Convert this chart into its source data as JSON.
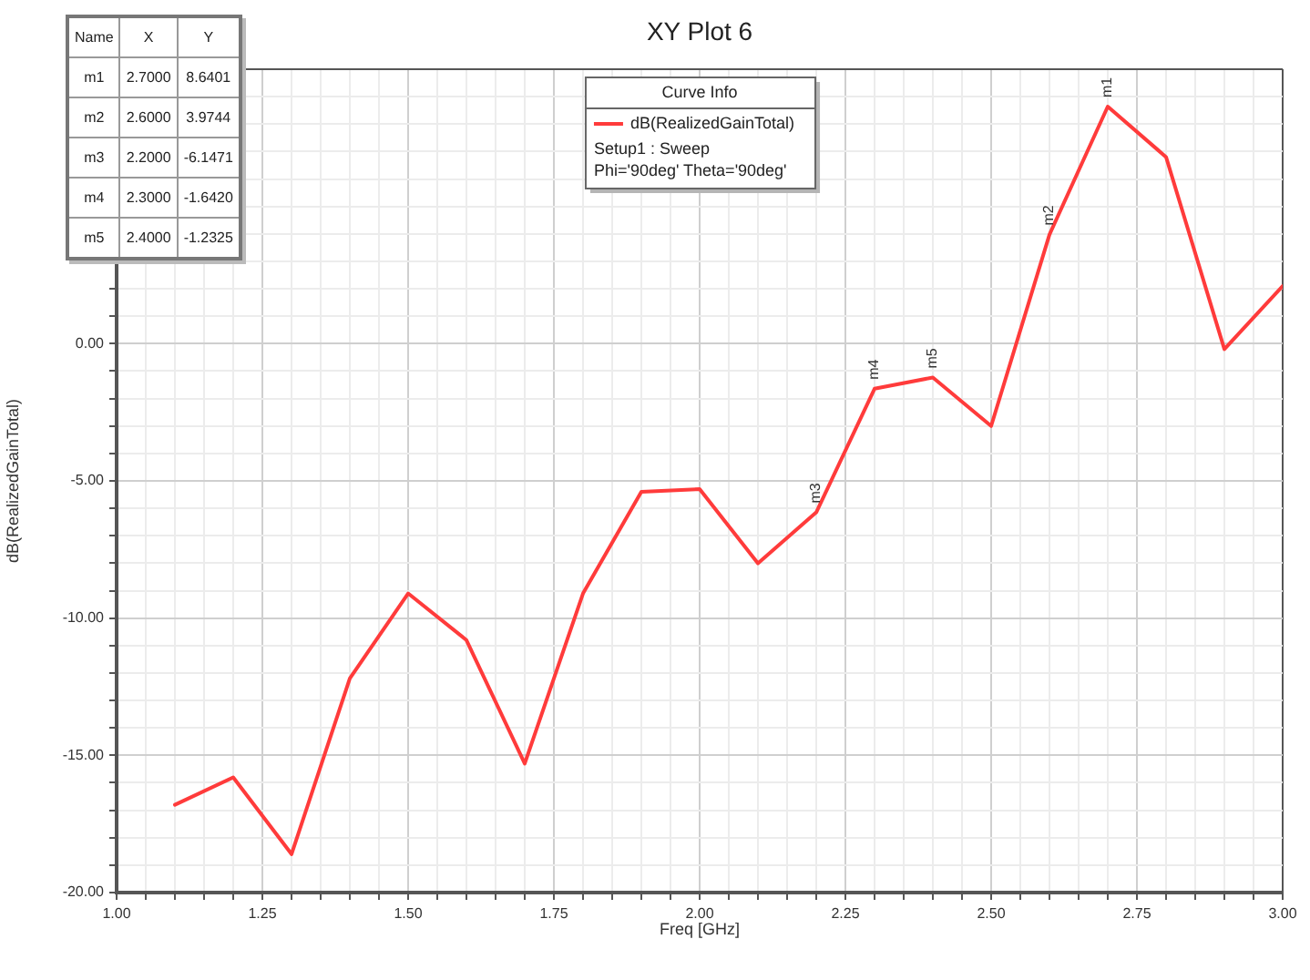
{
  "chart_data": {
    "type": "line",
    "title": "XY Plot 6",
    "xlabel": "Freq [GHz]",
    "ylabel": "dB(RealizedGainTotal)",
    "legend_title": "Curve Info",
    "x": [
      1.1,
      1.2,
      1.3,
      1.4,
      1.5,
      1.6,
      1.7,
      1.8,
      1.9,
      2,
      2.1,
      2.2,
      2.3,
      2.4,
      2.5,
      2.6,
      2.7,
      2.8,
      2.9,
      3
    ],
    "series": [
      {
        "name": "dB(RealizedGainTotal)",
        "color": "#ff3b3b",
        "values": [
          -16.8,
          -15.8,
          -18.6,
          -12.2,
          -9.1,
          -10.8,
          -15.3,
          -9.1,
          -5.4,
          -5.3,
          -8.0,
          -6.1471,
          -1.642,
          -1.2325,
          -3.0,
          3.9744,
          8.6401,
          6.8,
          -0.2,
          2.1
        ]
      }
    ],
    "xlim": [
      1,
      3
    ],
    "xticks": [
      {
        "value": 1,
        "label": "1.00"
      },
      {
        "value": 1.05,
        "label": null
      },
      {
        "value": 1.1,
        "label": null
      },
      {
        "value": 1.15,
        "label": null
      },
      {
        "value": 1.2,
        "label": null
      },
      {
        "value": 1.25,
        "label": "1.25"
      },
      {
        "value": 1.3,
        "label": null
      },
      {
        "value": 1.35,
        "label": null
      },
      {
        "value": 1.4,
        "label": null
      },
      {
        "value": 1.45,
        "label": null
      },
      {
        "value": 1.5,
        "label": "1.50"
      },
      {
        "value": 1.55,
        "label": null
      },
      {
        "value": 1.6,
        "label": null
      },
      {
        "value": 1.65,
        "label": null
      },
      {
        "value": 1.7,
        "label": null
      },
      {
        "value": 1.75,
        "label": "1.75"
      },
      {
        "value": 1.8,
        "label": null
      },
      {
        "value": 1.85,
        "label": null
      },
      {
        "value": 1.9,
        "label": null
      },
      {
        "value": 1.95,
        "label": null
      },
      {
        "value": 2,
        "label": "2.00"
      },
      {
        "value": 2.05,
        "label": null
      },
      {
        "value": 2.1,
        "label": null
      },
      {
        "value": 2.15,
        "label": null
      },
      {
        "value": 2.2,
        "label": null
      },
      {
        "value": 2.25,
        "label": "2.25"
      },
      {
        "value": 2.3,
        "label": null
      },
      {
        "value": 2.35,
        "label": null
      },
      {
        "value": 2.4,
        "label": null
      },
      {
        "value": 2.45,
        "label": null
      },
      {
        "value": 2.5,
        "label": "2.50"
      },
      {
        "value": 2.55,
        "label": null
      },
      {
        "value": 2.6,
        "label": null
      },
      {
        "value": 2.65,
        "label": null
      },
      {
        "value": 2.7,
        "label": null
      },
      {
        "value": 2.75,
        "label": "2.75"
      },
      {
        "value": 2.8,
        "label": null
      },
      {
        "value": 2.85,
        "label": null
      },
      {
        "value": 2.9,
        "label": null
      },
      {
        "value": 2.95,
        "label": null
      },
      {
        "value": 3,
        "label": "3.00"
      }
    ],
    "ylim": [
      -20,
      10
    ],
    "yticks": [
      {
        "value": -20,
        "label": "-20.00"
      },
      {
        "value": -19,
        "label": null
      },
      {
        "value": -18,
        "label": null
      },
      {
        "value": -17,
        "label": null
      },
      {
        "value": -16,
        "label": null
      },
      {
        "value": -15,
        "label": "-15.00"
      },
      {
        "value": -14,
        "label": null
      },
      {
        "value": -13,
        "label": null
      },
      {
        "value": -12,
        "label": null
      },
      {
        "value": -11,
        "label": null
      },
      {
        "value": -10,
        "label": "-10.00"
      },
      {
        "value": -9,
        "label": null
      },
      {
        "value": -8,
        "label": null
      },
      {
        "value": -7,
        "label": null
      },
      {
        "value": -6,
        "label": null
      },
      {
        "value": -5,
        "label": "-5.00"
      },
      {
        "value": -4,
        "label": null
      },
      {
        "value": -3,
        "label": null
      },
      {
        "value": -2,
        "label": null
      },
      {
        "value": -1,
        "label": null
      },
      {
        "value": 0,
        "label": "0.00"
      },
      {
        "value": 1,
        "label": null
      },
      {
        "value": 2,
        "label": null
      },
      {
        "value": 3,
        "label": null
      },
      {
        "value": 4,
        "label": null
      },
      {
        "value": 5,
        "label": null
      },
      {
        "value": 6,
        "label": null
      },
      {
        "value": 7,
        "label": null
      },
      {
        "value": 8,
        "label": null
      },
      {
        "value": 9,
        "label": null
      },
      {
        "value": 10,
        "label": null
      }
    ],
    "grid": true,
    "legend": "top",
    "marker": "none",
    "line_style": "solid",
    "annotations": [
      "Name",
      "X",
      "Y",
      "m1",
      "2.7000",
      "8.6401",
      "m2",
      "2.6000",
      "3.9744",
      "m3",
      "2.2000",
      "-6.1471",
      "m4",
      "2.3000",
      "-1.6420",
      "m5",
      "2.4000",
      "-1.2325",
      "Setup1 : Sweep",
      "Phi='90deg' Theta='90deg'",
      {
        "text": "m1",
        "x": 2.7,
        "y": 8.6401
      },
      {
        "text": "m2",
        "x": 2.6,
        "y": 3.9744
      },
      {
        "text": "m3",
        "x": 2.2,
        "y": -6.1471
      },
      {
        "text": "m4",
        "x": 2.3,
        "y": -1.642
      },
      {
        "text": "m5",
        "x": 2.4,
        "y": -1.2325
      }
    ]
  }
}
